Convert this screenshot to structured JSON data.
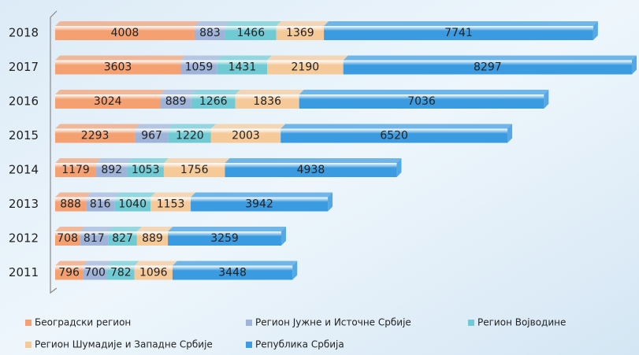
{
  "chart_data": {
    "type": "stacked-bar-horizontal",
    "categories": [
      "2018",
      "2017",
      "2016",
      "2015",
      "2014",
      "2013",
      "2012",
      "2011"
    ],
    "series": [
      {
        "name": "Београдски регион",
        "color": "#f4a070",
        "values": [
          4008,
          3603,
          3024,
          2293,
          1179,
          888,
          708,
          796
        ]
      },
      {
        "name": "Регион Јужне и Источне Србије",
        "color": "#9fb3d9",
        "values": [
          883,
          1059,
          889,
          967,
          892,
          816,
          817,
          700
        ]
      },
      {
        "name": "Регион Војводине",
        "color": "#6fcad3",
        "values": [
          1466,
          1431,
          1266,
          1220,
          1053,
          1040,
          827,
          782
        ]
      },
      {
        "name": "Регион Шумадије и Западне Србије",
        "color": "#f6c999",
        "values": [
          1369,
          2190,
          1836,
          2003,
          1756,
          1153,
          889,
          1096
        ]
      },
      {
        "name": "Република Србија",
        "color": "#3a9be0",
        "values": [
          7741,
          8297,
          7036,
          6520,
          4938,
          3942,
          3259,
          3448
        ]
      }
    ],
    "legend": "bottom"
  }
}
